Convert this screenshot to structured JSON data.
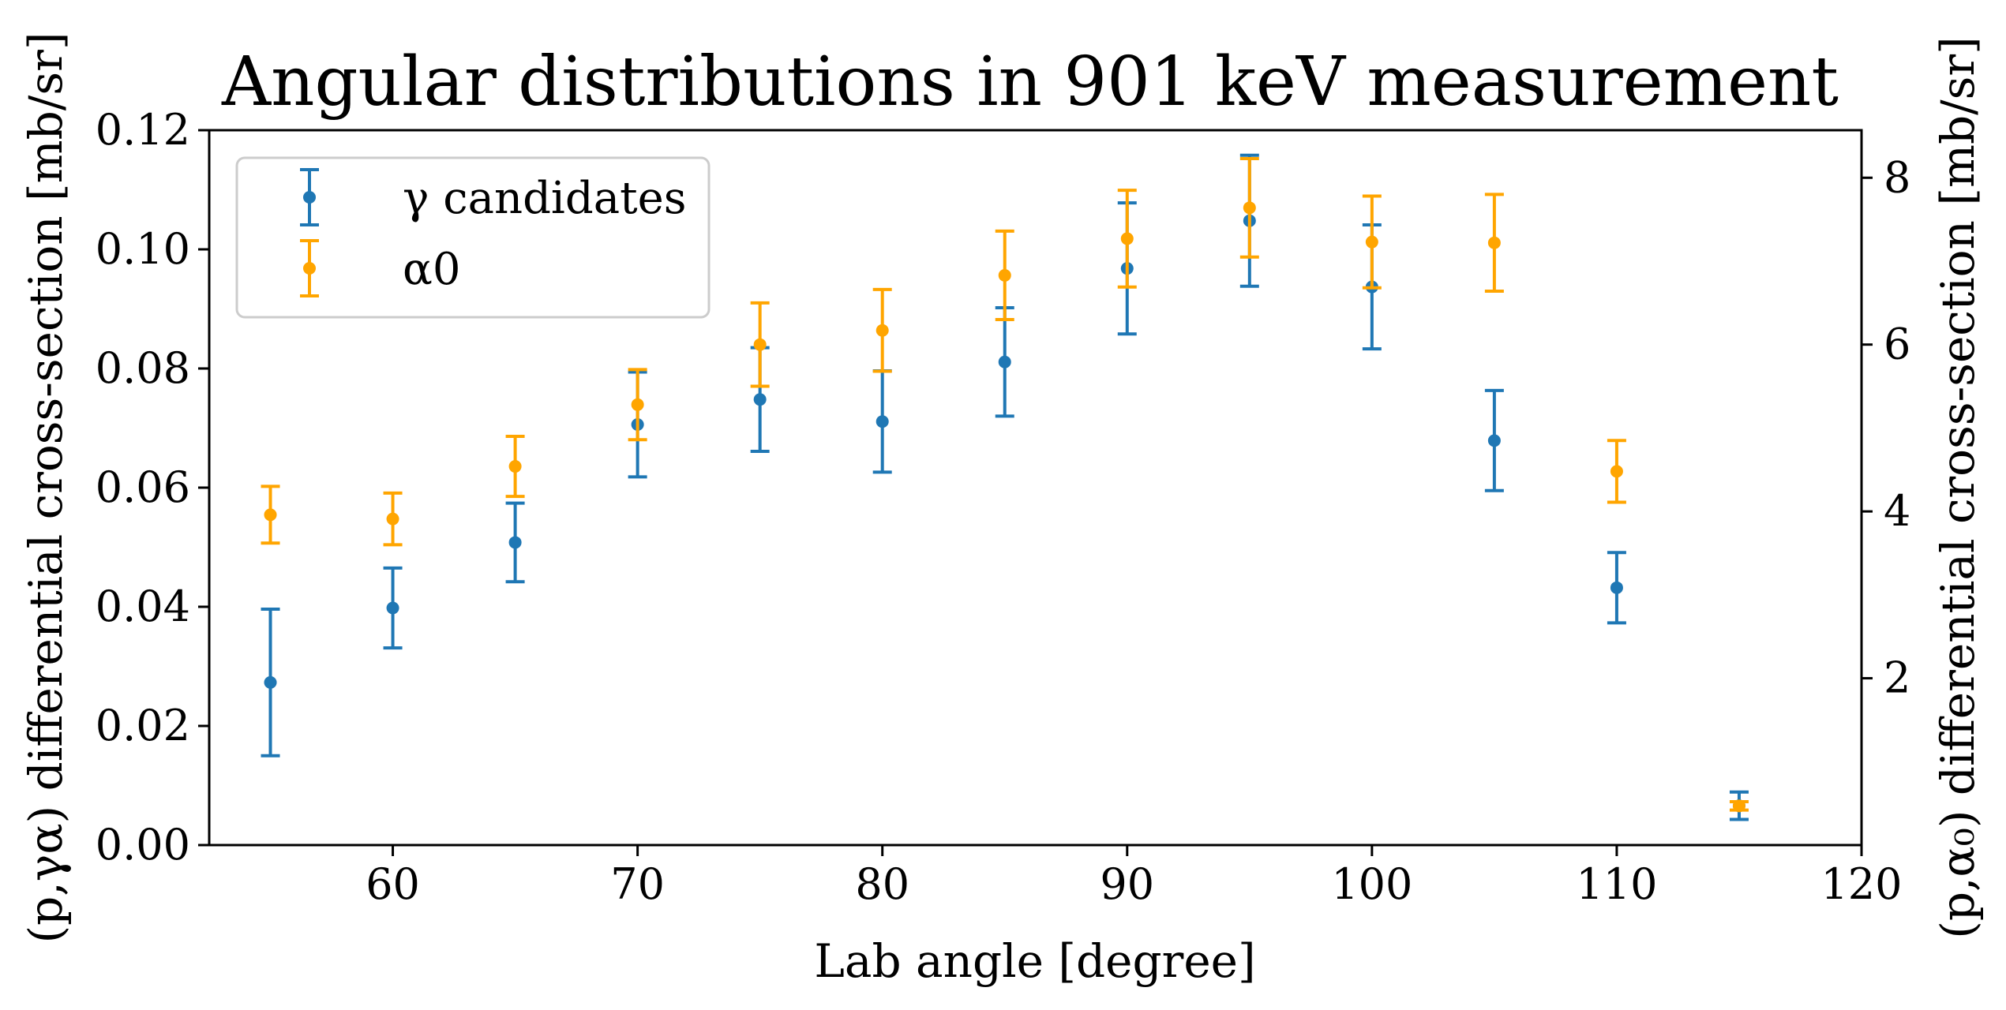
{
  "chart_data": {
    "type": "scatter",
    "title": "Angular distributions in 901 keV measurement",
    "xlabel": "Lab angle [degree]",
    "ylabel": "(p,γα) differential cross-section [mb/sr]",
    "ylabel_right": "(p,α₀) differential cross-section [mb/sr]",
    "xlim": [
      52.5,
      120
    ],
    "ylim": [
      0,
      0.12
    ],
    "ylim_right": [
      0,
      8.57
    ],
    "x_ticks": [
      "60",
      "70",
      "80",
      "90",
      "100",
      "110",
      "120"
    ],
    "y_ticks": [
      "0.00",
      "0.02",
      "0.04",
      "0.06",
      "0.08",
      "0.10",
      "0.12"
    ],
    "y_right_ticks": [
      "2",
      "4",
      "6",
      "8"
    ],
    "legend_position": "upper-left",
    "grid": false,
    "series": [
      {
        "name": "γ candidates",
        "axis": "left",
        "color": "#1f77b4",
        "x": [
          55,
          60,
          65,
          70,
          75,
          80,
          85,
          90,
          95,
          100,
          105,
          110,
          115
        ],
        "y": [
          0.0273,
          0.0398,
          0.0508,
          0.0706,
          0.0748,
          0.0711,
          0.0811,
          0.0968,
          0.1048,
          0.0937,
          0.0679,
          0.0432,
          0.0066
        ],
        "err": [
          0.0123,
          0.0067,
          0.0066,
          0.0088,
          0.0087,
          0.0085,
          0.0091,
          0.011,
          0.011,
          0.0104,
          0.0084,
          0.0059,
          0.0023
        ]
      },
      {
        "name": "α0",
        "axis": "right",
        "color": "#ffa500",
        "x": [
          55,
          60,
          65,
          70,
          75,
          80,
          85,
          90,
          95,
          100,
          105,
          110,
          115
        ],
        "y": [
          3.96,
          3.91,
          4.54,
          5.28,
          6.0,
          6.17,
          6.83,
          7.27,
          7.64,
          7.23,
          7.22,
          4.48,
          0.47
        ],
        "err": [
          0.34,
          0.31,
          0.36,
          0.42,
          0.5,
          0.49,
          0.53,
          0.58,
          0.59,
          0.55,
          0.58,
          0.37,
          0.05
        ]
      }
    ]
  }
}
